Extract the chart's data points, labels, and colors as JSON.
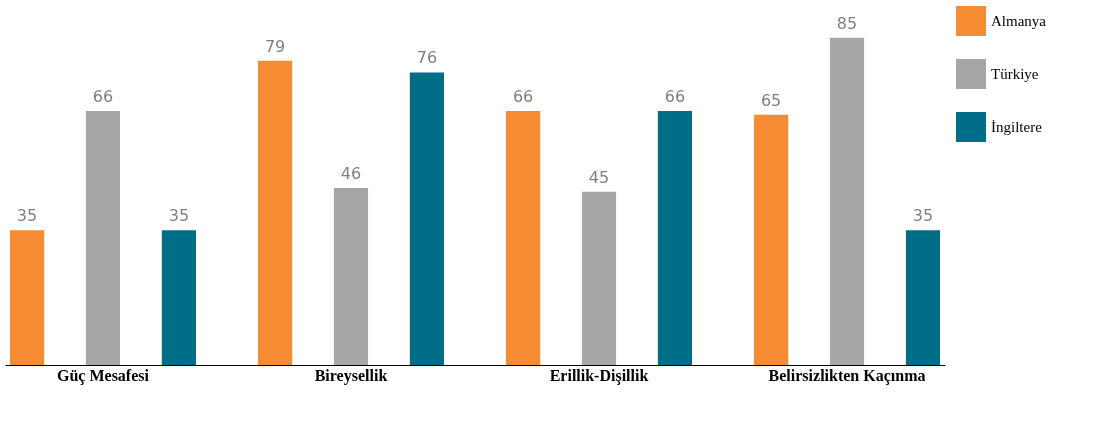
{
  "chart_data": {
    "type": "bar",
    "categories": [
      "Güç Mesafesi",
      "Bireysellik",
      "Erillik-Dişillik",
      "Belirsizlikten Kaçınma"
    ],
    "series": [
      {
        "name": "Almanya",
        "color": "#f58b33",
        "values": [
          35,
          79,
          66,
          65
        ]
      },
      {
        "name": "Türkiye",
        "color": "#a6a6a6",
        "values": [
          66,
          46,
          45,
          85
        ]
      },
      {
        "name": "İngiltere",
        "color": "#006e87",
        "values": [
          35,
          76,
          66,
          35
        ]
      }
    ],
    "data_labels": true,
    "legend": "right",
    "grid": false
  }
}
